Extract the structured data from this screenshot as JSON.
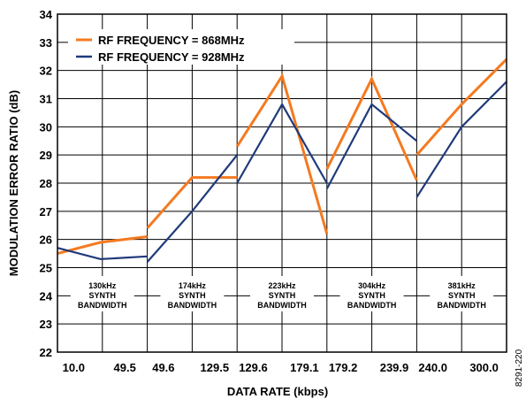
{
  "chart_data": {
    "type": "line",
    "title": "",
    "xlabel": "DATA RATE (kbps)",
    "ylabel": "MODULATION ERROR RATIO (dB)",
    "ylim": [
      22,
      34
    ],
    "y_ticks": [
      "22",
      "23",
      "24",
      "25",
      "26",
      "27",
      "28",
      "29",
      "30",
      "31",
      "32",
      "33",
      "34"
    ],
    "grid": true,
    "legend_position": "top-left",
    "figure_id": "8291-220",
    "groups": [
      {
        "band_lines": [
          "130kHz",
          "SYNTH",
          "BANDWIDTH"
        ],
        "x_ticks": [
          "10.0",
          "49.5"
        ],
        "x_start": 10.0,
        "x_end": 49.5,
        "series_868": {
          "x": [
            10.0,
            29.0,
            49.5
          ],
          "y": [
            25.5,
            25.9,
            26.1
          ]
        },
        "series_928": {
          "x": [
            10.0,
            29.0,
            49.5
          ],
          "y": [
            25.7,
            25.3,
            25.4
          ]
        }
      },
      {
        "band_lines": [
          "174kHz",
          "SYNTH",
          "BANDWIDTH"
        ],
        "x_ticks": [
          "49.6",
          "129.5"
        ],
        "x_start": 49.6,
        "x_end": 129.5,
        "series_868": {
          "x": [
            49.6,
            89.5,
            129.5
          ],
          "y": [
            26.4,
            28.2,
            28.2
          ]
        },
        "series_928": {
          "x": [
            49.6,
            89.5,
            129.5
          ],
          "y": [
            25.2,
            27.0,
            29.0
          ]
        }
      },
      {
        "band_lines": [
          "223kHz",
          "SYNTH",
          "BANDWIDTH"
        ],
        "x_ticks": [
          "129.6",
          "179.1"
        ],
        "x_start": 129.6,
        "x_end": 179.1,
        "series_868": {
          "x": [
            129.6,
            154.4,
            179.1
          ],
          "y": [
            29.3,
            31.8,
            26.2
          ]
        },
        "series_928": {
          "x": [
            129.6,
            154.4,
            179.1
          ],
          "y": [
            28.0,
            30.8,
            28.0
          ]
        }
      },
      {
        "band_lines": [
          "304kHz",
          "SYNTH",
          "BANDWIDTH"
        ],
        "x_ticks": [
          "179.2",
          "239.9"
        ],
        "x_start": 179.2,
        "x_end": 239.9,
        "series_868": {
          "x": [
            179.2,
            209.5,
            239.9
          ],
          "y": [
            28.5,
            31.7,
            28.1
          ]
        },
        "series_928": {
          "x": [
            179.2,
            209.5,
            239.9
          ],
          "y": [
            27.8,
            30.8,
            29.5
          ]
        }
      },
      {
        "band_lines": [
          "381kHz",
          "SYNTH",
          "BANDWIDTH"
        ],
        "x_ticks": [
          "240.0",
          "300.0"
        ],
        "x_start": 240.0,
        "x_end": 300.0,
        "series_868": {
          "x": [
            240.0,
            270.0,
            300.0
          ],
          "y": [
            29.0,
            30.8,
            32.4
          ]
        },
        "series_928": {
          "x": [
            240.0,
            270.0,
            300.0
          ],
          "y": [
            27.5,
            30.0,
            31.6
          ]
        }
      }
    ],
    "series": [
      {
        "name": "RF FREQUENCY = 868MHz",
        "key": "series_868",
        "color": "#f47a20"
      },
      {
        "name": "RF FREQUENCY = 928MHz",
        "key": "series_928",
        "color": "#1f3a7a"
      }
    ]
  }
}
